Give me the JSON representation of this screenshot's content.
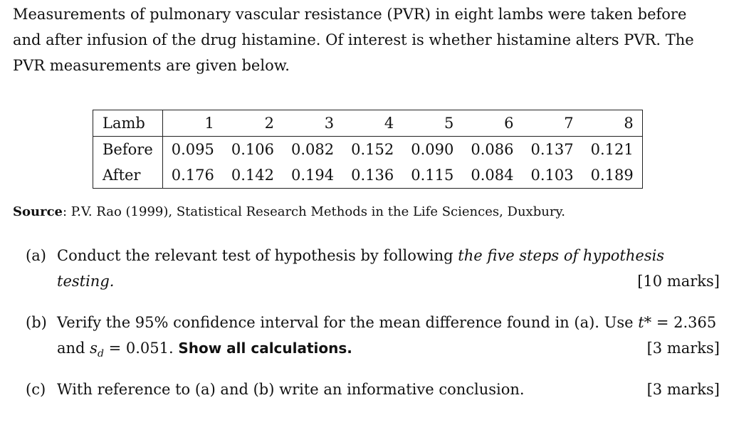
{
  "intro": {
    "line1": "Measurements of pulmonary vascular resistance (PVR) in eight lambs were taken before",
    "line2": "and after infusion of the drug histamine. Of interest is whether histamine alters PVR. The",
    "line3": "PVR measurements are given below."
  },
  "table": {
    "header_label": "Lamb",
    "lambs": [
      "1",
      "2",
      "3",
      "4",
      "5",
      "6",
      "7",
      "8"
    ],
    "rows": [
      {
        "label": "Before",
        "values": [
          "0.095",
          "0.106",
          "0.082",
          "0.152",
          "0.090",
          "0.086",
          "0.137",
          "0.121"
        ]
      },
      {
        "label": "After",
        "values": [
          "0.176",
          "0.142",
          "0.194",
          "0.136",
          "0.115",
          "0.084",
          "0.103",
          "0.189"
        ]
      }
    ]
  },
  "source": {
    "label": "Source",
    "text": ": P.V. Rao (1999), Statistical Research Methods in the Life Sciences, Duxbury."
  },
  "questions": {
    "a": {
      "label": "(a)",
      "text_plain": "Conduct the relevant test of hypothesis by following ",
      "text_italic": "the five steps of hypothesis",
      "text_italic_2": "testing.",
      "marks": "[10 marks]"
    },
    "b": {
      "label": "(b)",
      "text_1": "Verify the 95% confidence interval for the mean difference found in (a). Use ",
      "t_symbol": "t*",
      "t_value": " = 2.365",
      "text_2": "and ",
      "s_symbol": "s",
      "s_sub": "d",
      "s_value": " = 0.051. ",
      "bold_text": "Show all calculations.",
      "marks": "[3 marks]"
    },
    "c": {
      "label": "(c)",
      "text": "With reference to (a) and (b) write an informative conclusion.",
      "marks": "[3 marks]"
    }
  }
}
